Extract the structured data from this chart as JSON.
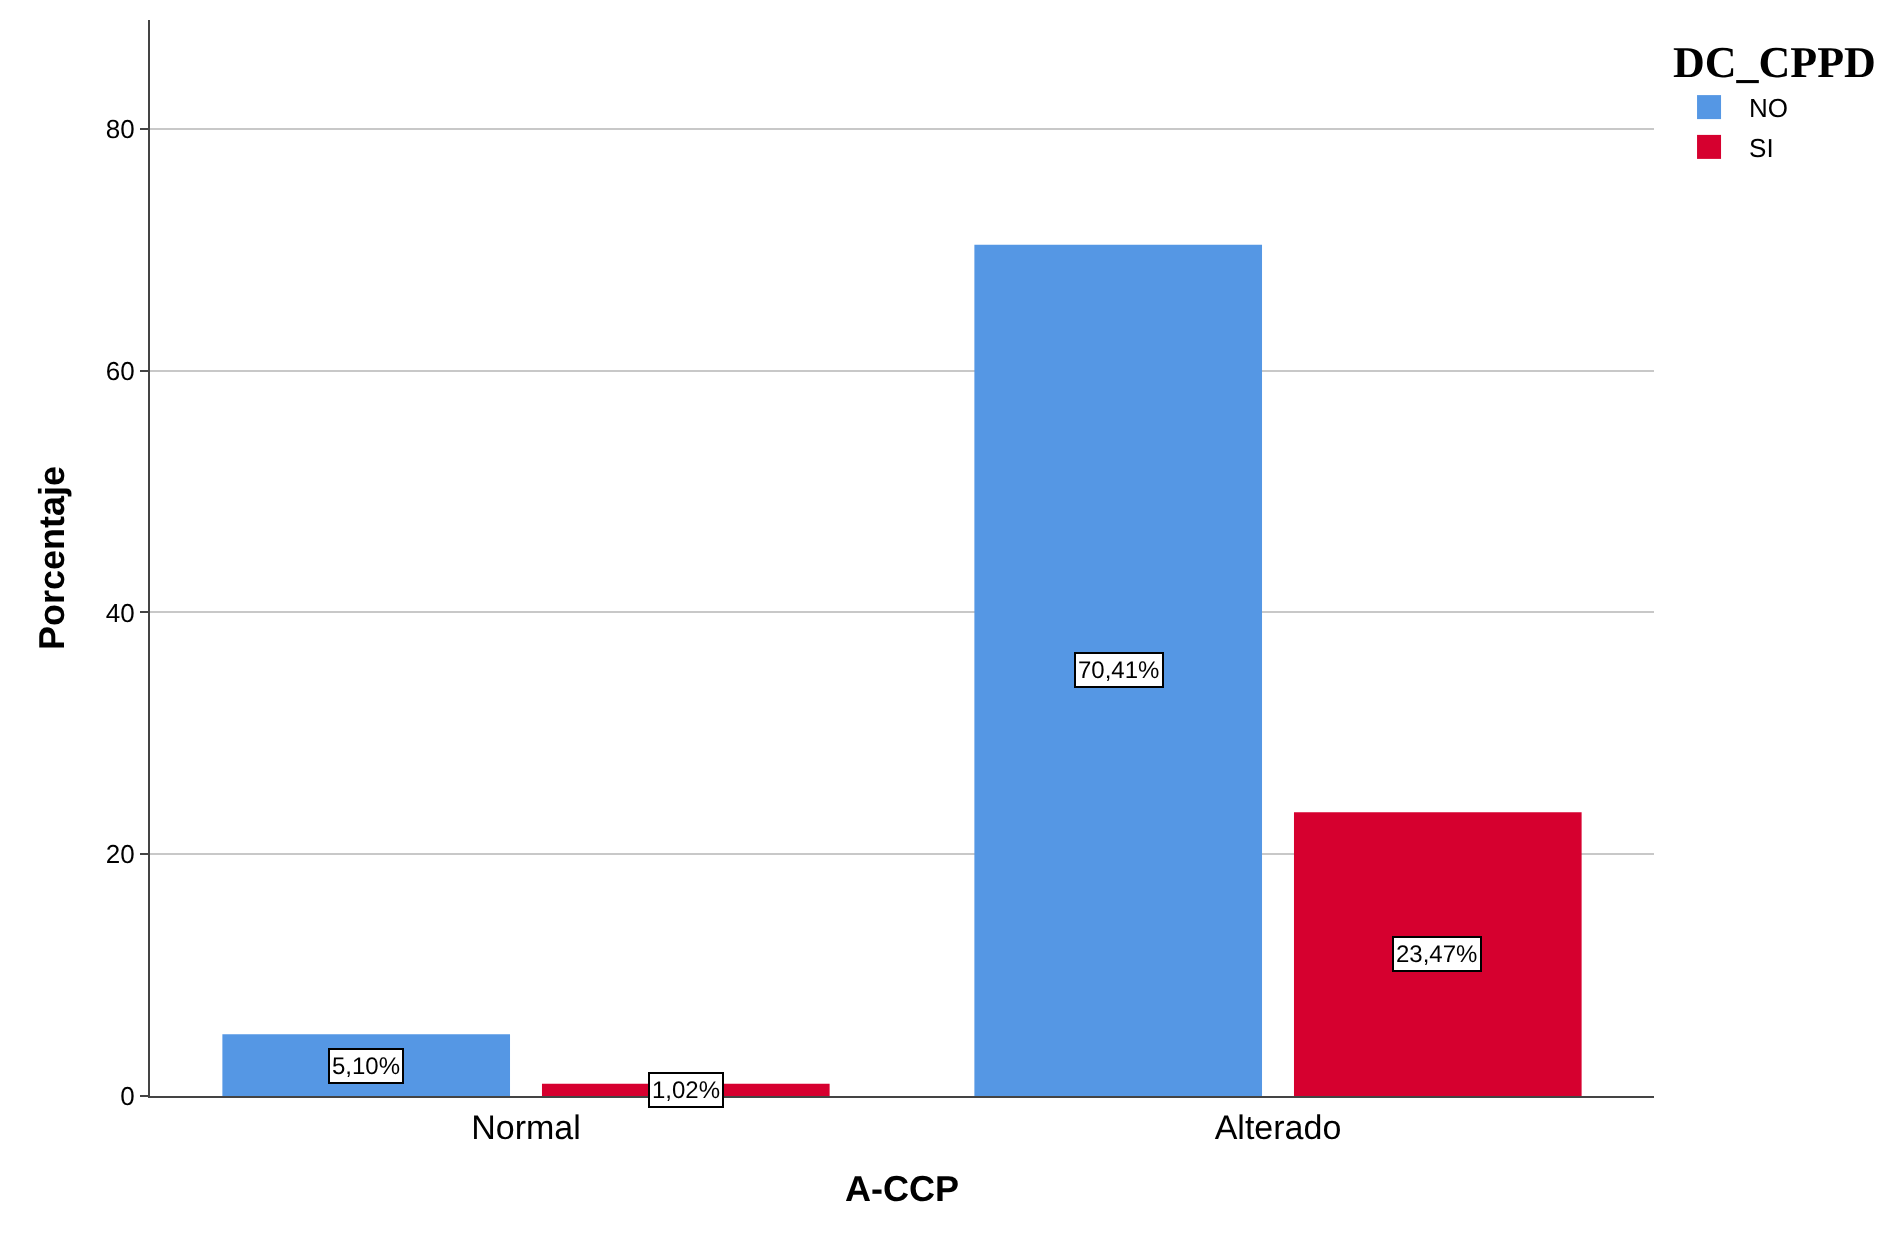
{
  "chart_data": {
    "type": "bar",
    "xlabel": "A-CCP",
    "ylabel": "Porcentaje",
    "legend_title": "DC_CPPD",
    "categories": [
      "Normal",
      "Alterado"
    ],
    "series": [
      {
        "name": "NO",
        "color": "#5597e4",
        "values": [
          5.1,
          70.41
        ],
        "value_labels": [
          "5,10%",
          "70,41%"
        ]
      },
      {
        "name": "SI",
        "color": "#d6002f",
        "values": [
          1.02,
          23.47
        ],
        "value_labels": [
          "1,02%",
          "23,47%"
        ]
      }
    ],
    "ylim": [
      0,
      89
    ],
    "yticks": [
      0,
      20,
      40,
      60,
      80
    ],
    "grid": "y",
    "legend": "top right"
  }
}
